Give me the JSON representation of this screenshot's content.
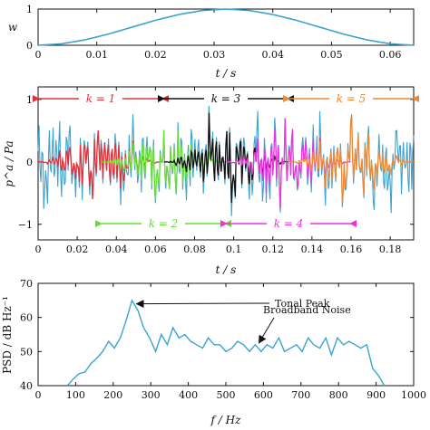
{
  "charts": [
    {
      "id": "window",
      "ylabel": "w",
      "xlabel": "t / s",
      "xticks": [
        "0",
        "0.01",
        "0.02",
        "0.03",
        "0.04",
        "0.05",
        "0.06"
      ],
      "yticks": [
        "0",
        "1"
      ],
      "line_color": "#3ba3d0"
    },
    {
      "id": "pressure",
      "ylabel": "p^a / Pa",
      "xlabel": "t / s",
      "xticks": [
        "0",
        "0.02",
        "0.04",
        "0.06",
        "0.08",
        "0.1",
        "0.12",
        "0.14",
        "0.16",
        "0.18"
      ],
      "yticks": [
        "−1",
        "0",
        "1"
      ],
      "segments": [
        {
          "label": "k = 1",
          "start": 0.0,
          "end": 0.064,
          "color": "#e0333b",
          "row": "top"
        },
        {
          "label": "k = 2",
          "start": 0.032,
          "end": 0.096,
          "color": "#66dd33",
          "row": "bottom"
        },
        {
          "label": "k = 3",
          "start": 0.064,
          "end": 0.128,
          "color": "#111111",
          "row": "top"
        },
        {
          "label": "k = 4",
          "start": 0.096,
          "end": 0.16,
          "color": "#ee33dd",
          "row": "bottom"
        },
        {
          "label": "k = 5",
          "start": 0.128,
          "end": 0.192,
          "color": "#ee8833",
          "row": "top"
        }
      ],
      "signal_color": "#3ba3d0"
    },
    {
      "id": "psd",
      "ylabel": "PSD / dB Hz⁻¹",
      "xlabel": "f / Hz",
      "xticks": [
        "0",
        "100",
        "200",
        "300",
        "400",
        "500",
        "600",
        "700",
        "800",
        "900",
        "1000"
      ],
      "yticks": [
        "40",
        "50",
        "60",
        "70"
      ],
      "annotations": [
        {
          "text": "Tonal Peak"
        },
        {
          "text": "Broadband Noise"
        }
      ],
      "line_color": "#3ba3d0"
    }
  ],
  "chart_data": [
    {
      "type": "line",
      "title": "",
      "xlabel": "t / s",
      "ylabel": "w",
      "xlim": [
        0,
        0.064
      ],
      "ylim": [
        0,
        1
      ],
      "grid": false,
      "series": [
        {
          "x": [
            0,
            0.004,
            0.008,
            0.012,
            0.016,
            0.02,
            0.024,
            0.028,
            0.032,
            0.036,
            0.04,
            0.044,
            0.048,
            0.052,
            0.056,
            0.06,
            0.064
          ],
          "y": [
            0,
            0.04,
            0.15,
            0.31,
            0.5,
            0.69,
            0.85,
            0.96,
            1.0,
            0.96,
            0.85,
            0.69,
            0.5,
            0.31,
            0.15,
            0.04,
            0
          ]
        }
      ]
    },
    {
      "type": "line",
      "title": "",
      "xlabel": "t / s",
      "ylabel": "p^a / Pa",
      "xlim": [
        0,
        0.192
      ],
      "ylim": [
        -1.25,
        1.2
      ],
      "grid": false,
      "series": [
        {
          "x": [
            0,
            0.004,
            0.008,
            0.012,
            0.016,
            0.02,
            0.024,
            0.028,
            0.032,
            0.036,
            0.04,
            0.044,
            0.048,
            0.052,
            0.056,
            0.06,
            0.064,
            0.068,
            0.072,
            0.076,
            0.08,
            0.084,
            0.088,
            0.092,
            0.096,
            0.1,
            0.104,
            0.108,
            0.112,
            0.116,
            0.12,
            0.124,
            0.128,
            0.132,
            0.136,
            0.14,
            0.144,
            0.148,
            0.152,
            0.156,
            0.16,
            0.164,
            0.168,
            0.172,
            0.176,
            0.18,
            0.184,
            0.188,
            0.192
          ],
          "y": [
            0.3,
            -0.6,
            0.5,
            -0.3,
            0.4,
            -0.5,
            0.3,
            -0.4,
            0.5,
            -0.3,
            0.2,
            -0.5,
            0.4,
            -0.2,
            0.5,
            -0.4,
            0.3,
            -0.5,
            0.4,
            -0.3,
            0.2,
            -0.4,
            0.5,
            -0.2,
            0.3,
            -0.5,
            0.4,
            -0.3,
            0.5,
            -0.4,
            0.2,
            -0.3,
            0.4,
            -0.5,
            0.3,
            -0.2,
            0.4,
            -0.5,
            0.3,
            -0.4,
            0.5,
            -0.3,
            0.2,
            -0.4,
            0.3,
            -0.5,
            0.4,
            -0.2,
            0.3
          ]
        }
      ]
    },
    {
      "type": "line",
      "title": "",
      "xlabel": "f / Hz",
      "ylabel": "PSD / dB Hz⁻¹",
      "xlim": [
        0,
        1000
      ],
      "ylim": [
        40,
        70
      ],
      "grid": false,
      "series": [
        {
          "x": [
            78,
            94,
            109,
            125,
            141,
            156,
            172,
            188,
            203,
            219,
            234,
            250,
            266,
            281,
            297,
            313,
            328,
            344,
            359,
            375,
            391,
            406,
            422,
            438,
            453,
            469,
            484,
            500,
            516,
            531,
            547,
            563,
            578,
            594,
            609,
            625,
            641,
            656,
            672,
            688,
            703,
            719,
            734,
            750,
            766,
            781,
            797,
            813,
            828,
            844,
            859,
            875,
            891,
            906,
            922
          ],
          "y": [
            40,
            42,
            43.5,
            44,
            46.5,
            48,
            50,
            53,
            51,
            54,
            59,
            65,
            62,
            57,
            54,
            50,
            55,
            52,
            57,
            54,
            55,
            53,
            52,
            51,
            54,
            52,
            52,
            50,
            51,
            53,
            52,
            50,
            52,
            50,
            52,
            51,
            54,
            50,
            51,
            52,
            50,
            54,
            52,
            51,
            54,
            49,
            54,
            52,
            53,
            52,
            51,
            52,
            45,
            43,
            40
          ]
        }
      ]
    }
  ]
}
